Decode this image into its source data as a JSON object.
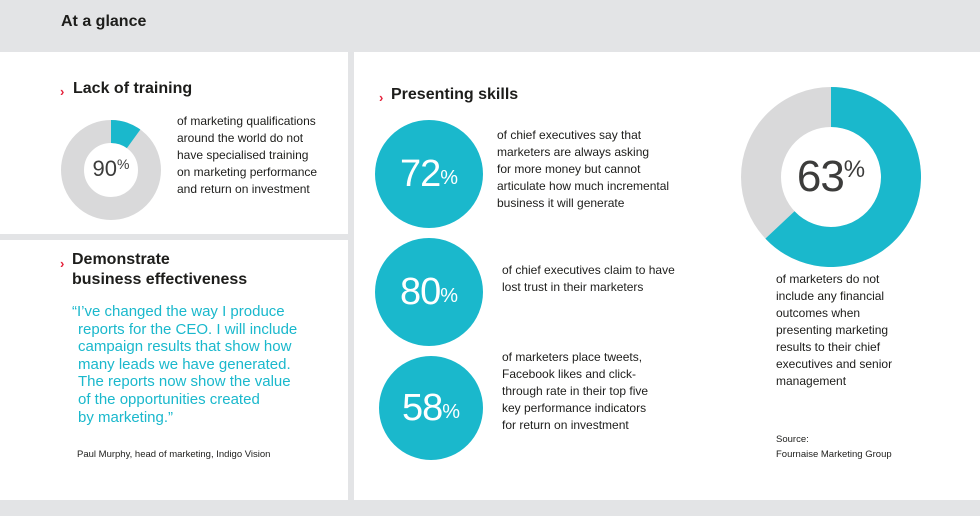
{
  "header": {
    "title": "At a glance"
  },
  "training": {
    "chevron": "›",
    "title": "Lack of training",
    "percent_value": "90",
    "percent_sign": "%",
    "fraction": 0.9,
    "lines": [
      "of marketing qualifications",
      "around the world do not",
      "have specialised training",
      "on marketing performance",
      "and return on investment"
    ]
  },
  "effectiveness": {
    "chevron": "›",
    "title_line1": "Demonstrate",
    "title_line2": "business effectiveness",
    "quote_lines": [
      "“I’ve changed the way I produce",
      "reports for the CEO. I will include",
      "campaign results that show how",
      "many leads we have generated.",
      "The reports now show the value",
      "of the opportunities created",
      "by marketing.”"
    ],
    "attribution": "Paul Murphy, head of marketing, Indigo Vision"
  },
  "presenting": {
    "chevron": "›",
    "title": "Presenting skills",
    "stats": [
      {
        "value": "72",
        "sign": "%",
        "lines": [
          "of chief executives say that",
          "marketers are always asking",
          "for more money but cannot",
          "articulate how much incremental",
          "business it will generate"
        ]
      },
      {
        "value": "80",
        "sign": "%",
        "lines": [
          "of chief executives claim to have",
          "lost trust in their marketers"
        ]
      },
      {
        "value": "58",
        "sign": "%",
        "lines": [
          "of marketers place tweets,",
          "Facebook likes and click-",
          "through rate in their top five",
          "key performance indicators",
          "for return on investment"
        ]
      }
    ]
  },
  "financial": {
    "percent_value": "63",
    "percent_sign": "%",
    "fraction": 0.63,
    "lines": [
      "of marketers do not",
      "include any financial",
      "outcomes when",
      "presenting marketing",
      "results to their chief",
      "executives and senior",
      "management"
    ],
    "source_label": "Source:",
    "source_name": "Fournaise Marketing Group"
  },
  "colors": {
    "accent": "#1ab8cc",
    "neutral": "#d9d9da",
    "chevron": "#e4223b",
    "background": "#e3e4e6"
  }
}
